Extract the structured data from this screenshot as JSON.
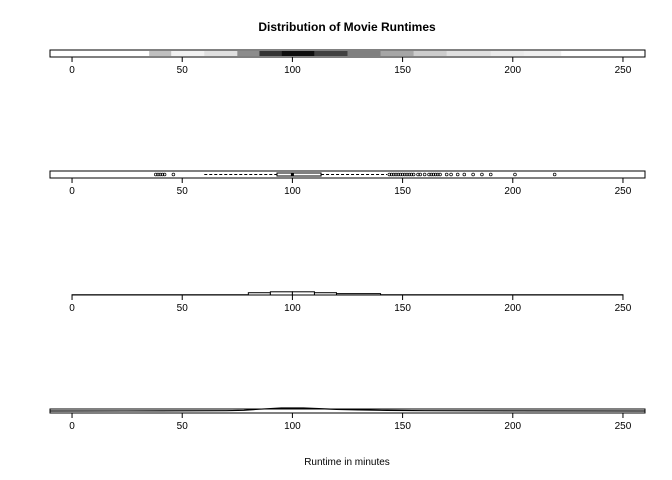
{
  "chart_data": {
    "type": "multi-panel 1D distribution",
    "title": "Distribution of Movie Runtimes",
    "xlabel": "Runtime in minutes",
    "xlim": [
      -10,
      260
    ],
    "xticks": [
      0,
      50,
      100,
      150,
      200,
      250
    ],
    "panels": [
      {
        "type": "strip-density",
        "name": "",
        "bins": [
          {
            "x0": 35,
            "x1": 45,
            "weight": 0.25
          },
          {
            "x0": 45,
            "x1": 60,
            "weight": 0.05
          },
          {
            "x0": 60,
            "x1": 75,
            "weight": 0.12
          },
          {
            "x0": 75,
            "x1": 85,
            "weight": 0.45
          },
          {
            "x0": 85,
            "x1": 95,
            "weight": 0.8
          },
          {
            "x0": 95,
            "x1": 110,
            "weight": 0.95
          },
          {
            "x0": 110,
            "x1": 125,
            "weight": 0.75
          },
          {
            "x0": 125,
            "x1": 140,
            "weight": 0.5
          },
          {
            "x0": 140,
            "x1": 155,
            "weight": 0.35
          },
          {
            "x0": 155,
            "x1": 170,
            "weight": 0.2
          },
          {
            "x0": 170,
            "x1": 190,
            "weight": 0.12
          },
          {
            "x0": 190,
            "x1": 205,
            "weight": 0.08
          },
          {
            "x0": 205,
            "x1": 222,
            "weight": 0.06
          }
        ]
      },
      {
        "type": "boxplot",
        "name": "",
        "whisker_low": 60,
        "q1": 93,
        "median": 100,
        "q3": 113,
        "whisker_high": 143,
        "outliers": [
          38,
          39,
          40,
          41,
          42,
          46,
          144,
          145,
          146,
          147,
          148,
          149,
          150,
          151,
          152,
          153,
          154,
          155,
          157,
          158,
          160,
          162,
          163,
          164,
          165,
          166,
          167,
          170,
          172,
          175,
          178,
          182,
          186,
          190,
          201,
          219
        ]
      },
      {
        "type": "histogram",
        "name": "",
        "bins": [
          {
            "x0": 0,
            "x1": 80,
            "value": 0.3
          },
          {
            "x0": 80,
            "x1": 90,
            "value": 2.5
          },
          {
            "x0": 90,
            "x1": 100,
            "value": 3.5
          },
          {
            "x0": 100,
            "x1": 110,
            "value": 3.5
          },
          {
            "x0": 110,
            "x1": 120,
            "value": 2.5
          },
          {
            "x0": 120,
            "x1": 140,
            "value": 1.5
          },
          {
            "x0": 140,
            "x1": 250,
            "value": 0.3
          }
        ]
      },
      {
        "type": "density",
        "name": "",
        "points": [
          [
            -10,
            0
          ],
          [
            40,
            0.05
          ],
          [
            70,
            0.2
          ],
          [
            78,
            0.5
          ],
          [
            85,
            1.2
          ],
          [
            95,
            2
          ],
          [
            105,
            2
          ],
          [
            112,
            1.6
          ],
          [
            120,
            1.1
          ],
          [
            130,
            0.7
          ],
          [
            143,
            0.4
          ],
          [
            160,
            0.2
          ],
          [
            200,
            0.05
          ],
          [
            260,
            0
          ]
        ]
      }
    ]
  }
}
